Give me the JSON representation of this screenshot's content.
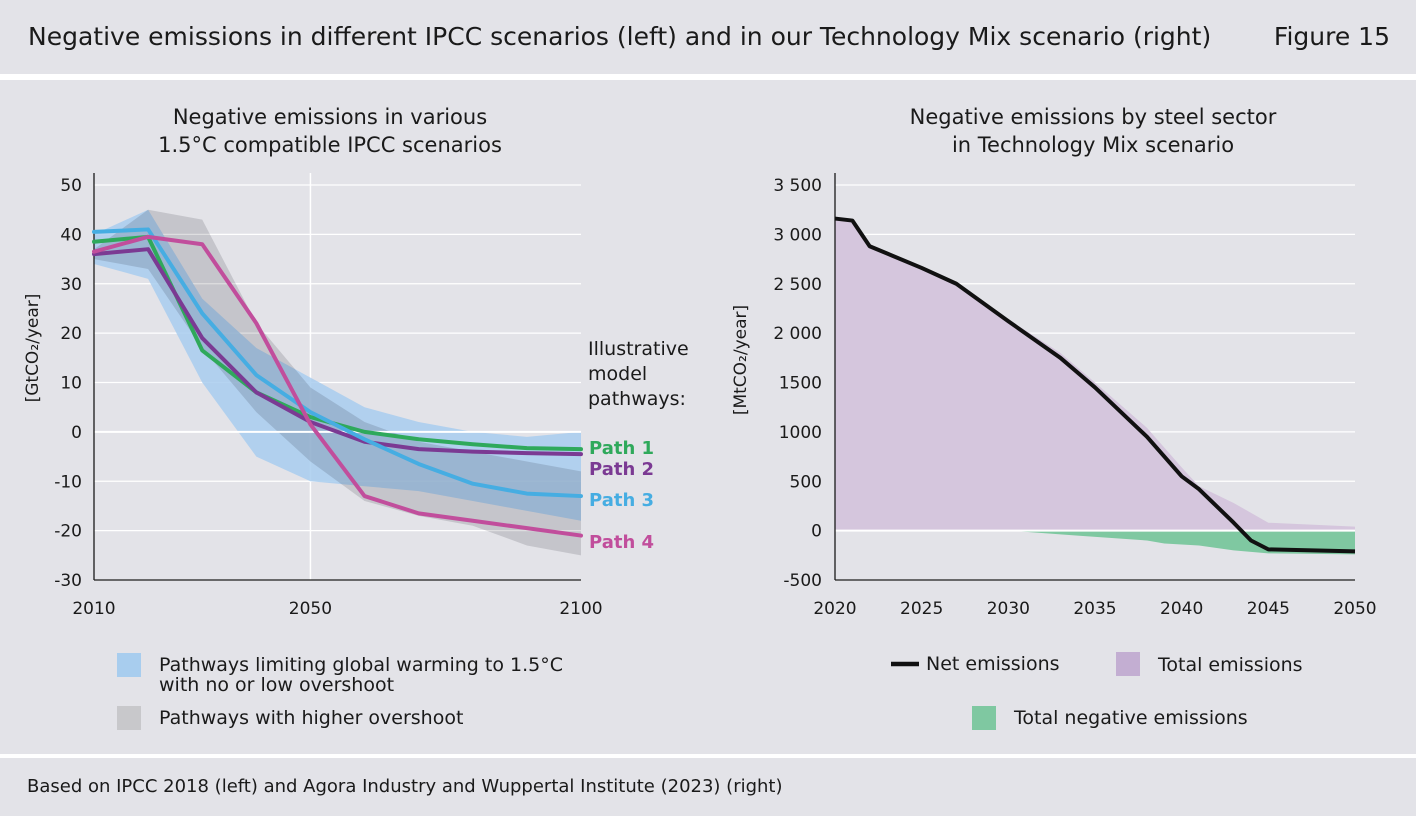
{
  "header": {
    "title": "Negative emissions in different IPCC scenarios (left) and in our Technology Mix scenario (right)",
    "figure_label": "Figure 15"
  },
  "footer": {
    "source": "Based on IPCC 2018 (left) and Agora Industry and Wuppertal Institute (2023) (right)"
  },
  "chart_data": [
    {
      "type": "line",
      "title_lines": [
        "Negative emissions in various",
        "1.5°C compatible IPCC scenarios"
      ],
      "ylabel": "[GtCO₂/year]",
      "xlim": [
        2010,
        2100
      ],
      "ylim": [
        -30,
        50
      ],
      "x_ticks": [
        "2010",
        "2050",
        "2100"
      ],
      "x_tick_values": [
        2010,
        2050,
        2100
      ],
      "y_ticks": [
        "50",
        "40",
        "30",
        "20",
        "10",
        "0",
        "-10",
        "-20",
        "-30"
      ],
      "y_tick_values": [
        50,
        40,
        30,
        20,
        10,
        0,
        -10,
        -20,
        -30
      ],
      "grid": true,
      "annotation_lines": [
        "Illustrative",
        "model",
        "pathways:"
      ],
      "bands": [
        {
          "name": "Pathways limiting global warming to 1.5°C with no or low overshoot",
          "color": "#a8cdee",
          "x": [
            2010,
            2020,
            2030,
            2040,
            2050,
            2060,
            2070,
            2080,
            2090,
            2100
          ],
          "upper": [
            40,
            45,
            27,
            17,
            11,
            5,
            2,
            0,
            -1,
            0
          ],
          "lower": [
            34,
            31,
            10,
            -5,
            -10,
            -11,
            -12,
            -14,
            -16,
            -18
          ]
        },
        {
          "name": "Pathways with higher overshoot",
          "color": "#c8c8cb",
          "x": [
            2010,
            2020,
            2030,
            2040,
            2050,
            2060,
            2070,
            2080,
            2090,
            2100
          ],
          "upper": [
            37,
            45,
            43,
            22,
            9,
            2,
            -2,
            -4,
            -6,
            -8
          ],
          "lower": [
            35,
            33,
            17,
            4,
            -6,
            -14,
            -17,
            -19,
            -23,
            -25
          ]
        }
      ],
      "series": [
        {
          "name": "Path 1",
          "color": "#2fa95b",
          "x": [
            2010,
            2020,
            2030,
            2040,
            2050,
            2060,
            2070,
            2080,
            2090,
            2100
          ],
          "values": [
            38.5,
            39.5,
            16.5,
            8,
            3,
            0,
            -1.5,
            -2.5,
            -3.3,
            -3.5
          ]
        },
        {
          "name": "Path 2",
          "color": "#7b3a93",
          "x": [
            2010,
            2020,
            2030,
            2040,
            2050,
            2060,
            2070,
            2080,
            2090,
            2100
          ],
          "values": [
            36,
            37,
            19,
            8,
            2,
            -2,
            -3.5,
            -4,
            -4.3,
            -4.5
          ]
        },
        {
          "name": "Path 3",
          "color": "#46ade2",
          "x": [
            2010,
            2020,
            2030,
            2040,
            2050,
            2060,
            2070,
            2080,
            2090,
            2100
          ],
          "values": [
            40.5,
            41,
            24,
            11.5,
            4,
            -1.5,
            -6.5,
            -10.5,
            -12.5,
            -13
          ]
        },
        {
          "name": "Path 4",
          "color": "#c14e9c",
          "x": [
            2010,
            2020,
            2030,
            2040,
            2050,
            2060,
            2070,
            2080,
            2090,
            2100
          ],
          "values": [
            36.5,
            39.5,
            38,
            22,
            1.5,
            -13,
            -16.5,
            -18,
            -19.5,
            -21
          ]
        }
      ],
      "legend": [
        {
          "label_lines": [
            "Pathways limiting global warming to 1.5°C",
            "with no or low overshoot"
          ],
          "color": "#a8cdee"
        },
        {
          "label_lines": [
            "Pathways with higher overshoot"
          ],
          "color": "#c8c8cb"
        }
      ]
    },
    {
      "type": "area",
      "title_lines": [
        "Negative emissions by steel sector",
        "in Technology Mix scenario"
      ],
      "ylabel": "[MtCO₂/year]",
      "xlim": [
        2020,
        2050
      ],
      "ylim": [
        -500,
        3500
      ],
      "x_ticks": [
        "2020",
        "2025",
        "2030",
        "2035",
        "2040",
        "2045",
        "2050"
      ],
      "x_tick_values": [
        2020,
        2025,
        2030,
        2035,
        2040,
        2045,
        2050
      ],
      "y_ticks": [
        "3 500",
        "3 000",
        "2 500",
        "2 000",
        "1500",
        "1000",
        "500",
        "0",
        "-500"
      ],
      "y_tick_values": [
        3500,
        3000,
        2500,
        2000,
        1500,
        1000,
        500,
        0,
        -500
      ],
      "grid": true,
      "series": [
        {
          "name": "Total emissions",
          "color": "#d5c6dd",
          "x": [
            2020,
            2021,
            2022,
            2025,
            2027,
            2030,
            2033,
            2035,
            2038,
            2040,
            2041,
            2043,
            2045,
            2050
          ],
          "values": [
            3160,
            3140,
            2880,
            2660,
            2500,
            2140,
            1800,
            1500,
            1040,
            640,
            450,
            280,
            80,
            40
          ]
        },
        {
          "name": "Total negative emissions",
          "color": "#7fc8a1",
          "x": [
            2020,
            2030,
            2034,
            2038,
            2039,
            2041,
            2043,
            2045,
            2050
          ],
          "values": [
            0,
            0,
            -50,
            -100,
            -130,
            -150,
            -200,
            -230,
            -240
          ]
        },
        {
          "name": "Net emissions",
          "color": "#111111",
          "x": [
            2020,
            2021,
            2022,
            2025,
            2027,
            2030,
            2033,
            2035,
            2038,
            2040,
            2041,
            2043,
            2044,
            2045,
            2050
          ],
          "values": [
            3160,
            3140,
            2880,
            2660,
            2500,
            2120,
            1750,
            1450,
            950,
            550,
            420,
            80,
            -100,
            -190,
            -210
          ]
        }
      ],
      "legend": [
        {
          "label": "Net emissions",
          "color": "#111111",
          "kind": "line"
        },
        {
          "label": "Total emissions",
          "color": "#c3aed2",
          "kind": "box"
        },
        {
          "label": "Total negative emissions",
          "color": "#7fc8a1",
          "kind": "box"
        }
      ]
    }
  ]
}
